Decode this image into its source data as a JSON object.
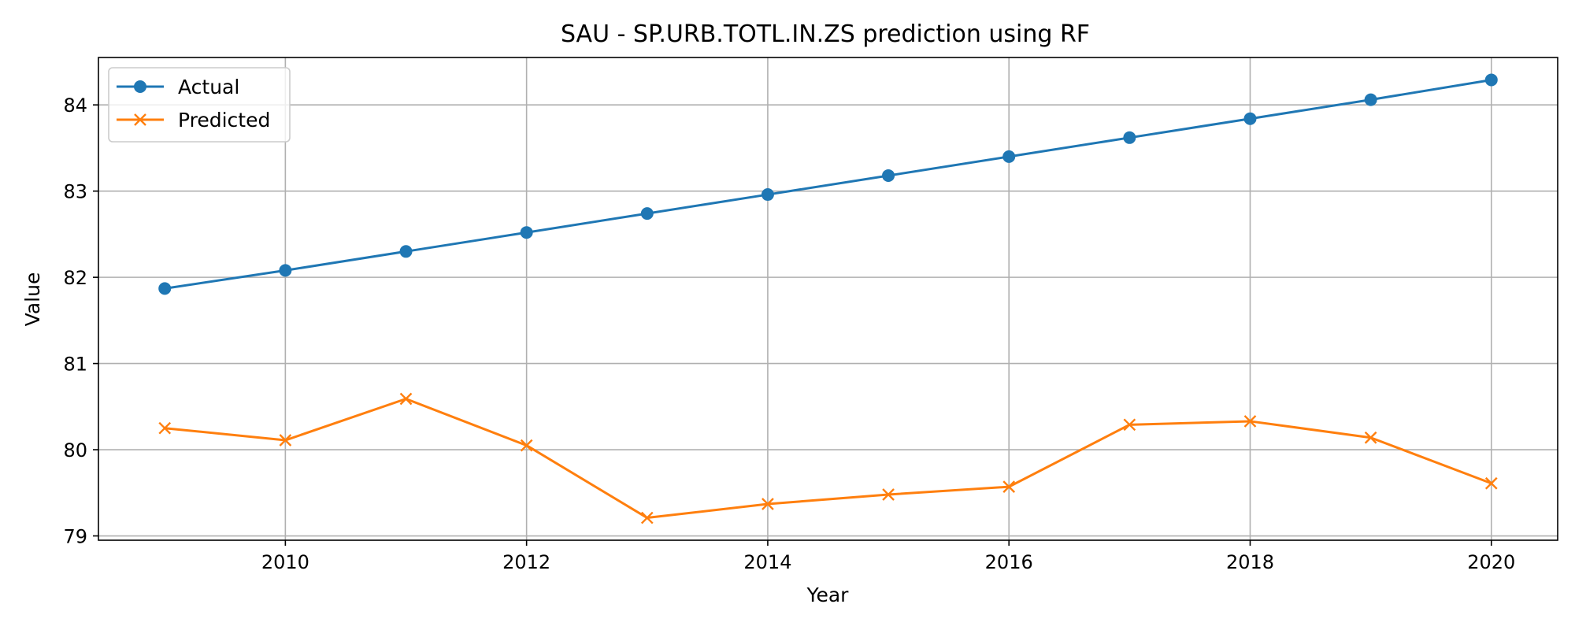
{
  "chart_data": {
    "type": "line",
    "title": "SAU - SP.URB.TOTL.IN.ZS prediction using RF",
    "xlabel": "Year",
    "ylabel": "Value",
    "x": [
      2009,
      2010,
      2011,
      2012,
      2013,
      2014,
      2015,
      2016,
      2017,
      2018,
      2019,
      2020
    ],
    "xlim": [
      2008.45,
      2020.55
    ],
    "ylim": [
      78.95,
      84.55
    ],
    "xticks": [
      2010,
      2012,
      2014,
      2016,
      2018,
      2020
    ],
    "yticks": [
      79,
      80,
      81,
      82,
      83,
      84
    ],
    "grid": true,
    "legend_position": "upper-left",
    "series": [
      {
        "name": "Actual",
        "color": "#1f77b4",
        "marker": "circle",
        "values": [
          81.87,
          82.08,
          82.3,
          82.52,
          82.74,
          82.96,
          83.18,
          83.4,
          83.62,
          83.84,
          84.06,
          84.29
        ]
      },
      {
        "name": "Predicted",
        "color": "#ff7f0e",
        "marker": "x",
        "values": [
          80.25,
          80.11,
          80.59,
          80.05,
          79.21,
          79.37,
          79.48,
          79.57,
          80.29,
          80.33,
          80.14,
          79.61
        ]
      }
    ]
  }
}
